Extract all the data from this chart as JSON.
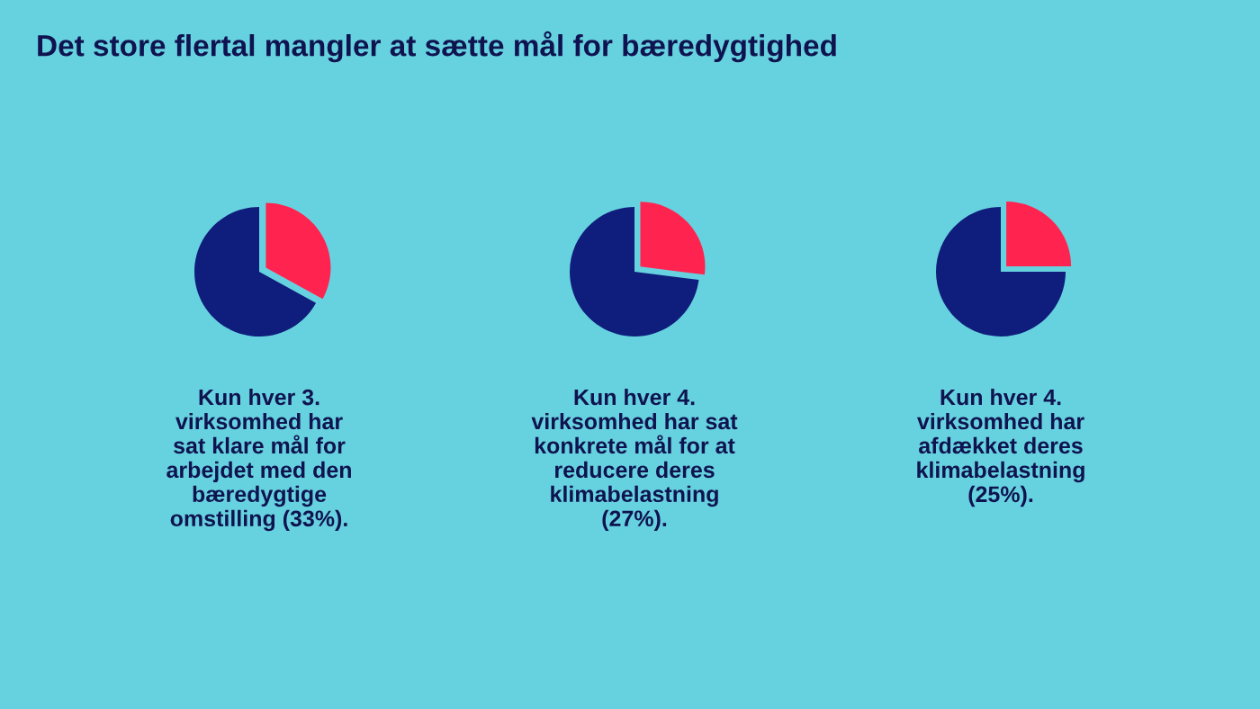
{
  "chart_data": [
    {
      "type": "pie",
      "title": "Det store flertal mangler at sætte mål for bæredygtighed",
      "categories": [
        null,
        null
      ],
      "values": [
        33,
        67
      ],
      "colors": [
        "#ff2350",
        "#0f1e7d"
      ],
      "annotations": [
        "Kun hver 3.\nvirksomhed har\nsat klare mål for\narbejdet med den\nbæredygtige\nomstilling (33%)."
      ]
    },
    {
      "type": "pie",
      "categories": [
        null,
        null
      ],
      "values": [
        27,
        73
      ],
      "colors": [
        "#ff2350",
        "#0f1e7d"
      ],
      "annotations": [
        "Kun hver 4.\nvirksomhed har sat\nkonkrete mål for at\nreducere deres\nklimabelastning\n(27%)."
      ]
    },
    {
      "type": "pie",
      "categories": [
        null,
        null
      ],
      "values": [
        25,
        75
      ],
      "colors": [
        "#ff2350",
        "#0f1e7d"
      ],
      "annotations": [
        "Kun hver 4.\nvirksomhed har\nafdækket deres\nklimabelastning\n(25%)."
      ]
    }
  ]
}
